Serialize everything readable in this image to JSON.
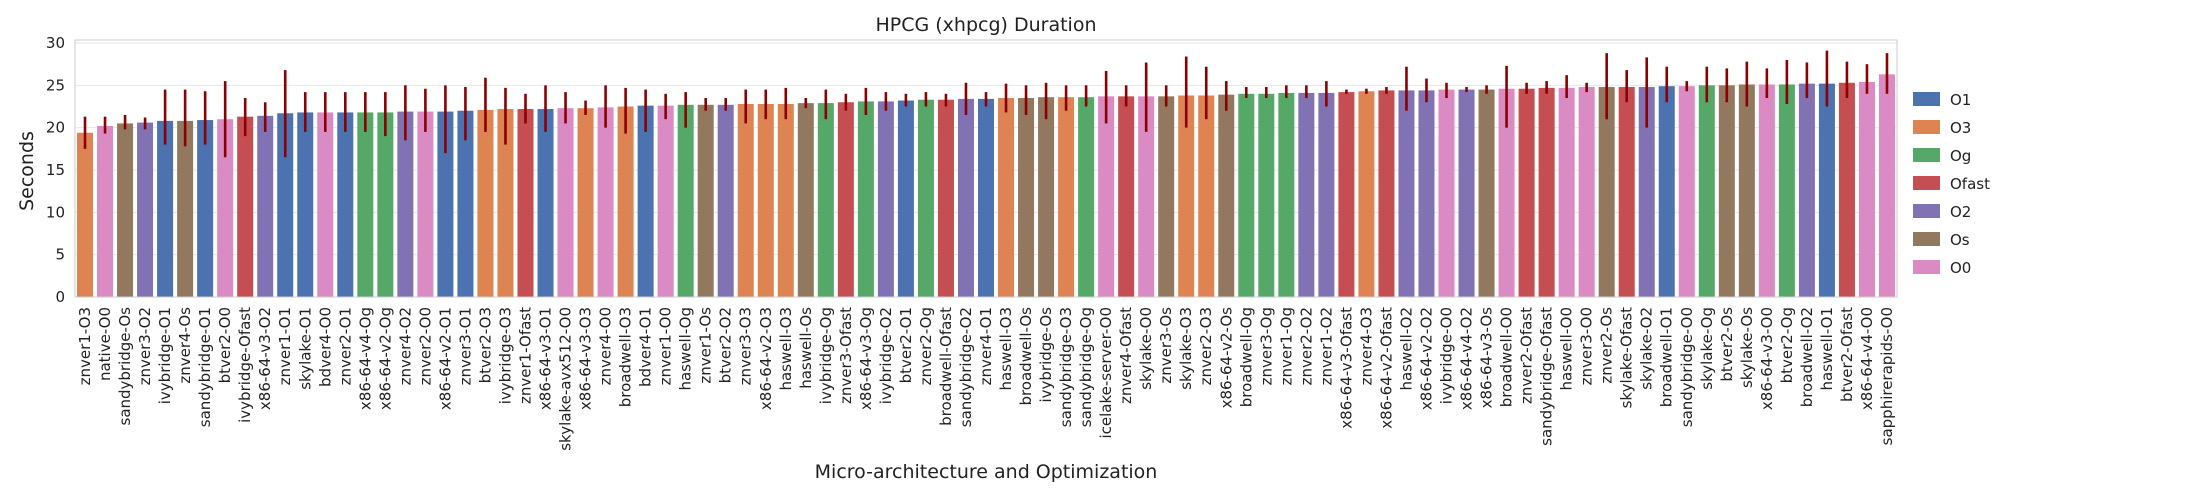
{
  "chart_data": {
    "type": "bar",
    "title": "HPCG (xhpcg) Duration",
    "xlabel": "Micro-architecture and Optimization",
    "ylabel": "Seconds",
    "ylim": [
      0,
      30
    ],
    "yticks": [
      0,
      5,
      10,
      15,
      20,
      25,
      30
    ],
    "grid": "horizontal",
    "legend_position": "right",
    "legend": [
      {
        "name": "O1",
        "color": "#4c72b0"
      },
      {
        "name": "O3",
        "color": "#dd8452"
      },
      {
        "name": "Og",
        "color": "#55a868"
      },
      {
        "name": "Ofast",
        "color": "#c44e52"
      },
      {
        "name": "O2",
        "color": "#8172b3"
      },
      {
        "name": "Os",
        "color": "#937860"
      },
      {
        "name": "O0",
        "color": "#da8bc3"
      }
    ],
    "error_bar_color": "#8b0000",
    "bars": [
      {
        "label": "znver1-O3",
        "opt": "O3",
        "value": 19.4,
        "err_low": 17.5,
        "err_high": 21.3
      },
      {
        "label": "native-O0",
        "opt": "O0",
        "value": 20.2,
        "err_low": 19.3,
        "err_high": 21.3
      },
      {
        "label": "sandybridge-Os",
        "opt": "Os",
        "value": 20.5,
        "err_low": 19.8,
        "err_high": 21.5
      },
      {
        "label": "znver3-O2",
        "opt": "O2",
        "value": 20.6,
        "err_low": 19.8,
        "err_high": 21.2
      },
      {
        "label": "ivybridge-O1",
        "opt": "O1",
        "value": 20.8,
        "err_low": 18.0,
        "err_high": 24.5
      },
      {
        "label": "znver4-Os",
        "opt": "Os",
        "value": 20.8,
        "err_low": 17.8,
        "err_high": 24.5
      },
      {
        "label": "sandybridge-O1",
        "opt": "O1",
        "value": 20.9,
        "err_low": 18.0,
        "err_high": 24.3
      },
      {
        "label": "btver2-O0",
        "opt": "O0",
        "value": 21.0,
        "err_low": 16.5,
        "err_high": 25.5
      },
      {
        "label": "ivybridge-Ofast",
        "opt": "Ofast",
        "value": 21.3,
        "err_low": 19.0,
        "err_high": 23.5
      },
      {
        "label": "x86-64-v3-O2",
        "opt": "O2",
        "value": 21.4,
        "err_low": 19.5,
        "err_high": 23.0
      },
      {
        "label": "znver1-O1",
        "opt": "O1",
        "value": 21.7,
        "err_low": 16.5,
        "err_high": 26.8
      },
      {
        "label": "skylake-O1",
        "opt": "O1",
        "value": 21.8,
        "err_low": 19.5,
        "err_high": 24.2
      },
      {
        "label": "bdver4-O0",
        "opt": "O0",
        "value": 21.8,
        "err_low": 19.5,
        "err_high": 24.2
      },
      {
        "label": "znver2-O1",
        "opt": "O1",
        "value": 21.8,
        "err_low": 19.5,
        "err_high": 24.2
      },
      {
        "label": "x86-64-v4-Og",
        "opt": "Og",
        "value": 21.8,
        "err_low": 19.5,
        "err_high": 24.2
      },
      {
        "label": "x86-64-v2-Og",
        "opt": "Og",
        "value": 21.8,
        "err_low": 19.0,
        "err_high": 24.2
      },
      {
        "label": "znver4-O2",
        "opt": "O2",
        "value": 21.9,
        "err_low": 18.5,
        "err_high": 25.0
      },
      {
        "label": "znver2-O0",
        "opt": "O0",
        "value": 21.9,
        "err_low": 19.5,
        "err_high": 24.6
      },
      {
        "label": "x86-64-v2-O1",
        "opt": "O1",
        "value": 21.9,
        "err_low": 17.0,
        "err_high": 25.0
      },
      {
        "label": "znver3-O1",
        "opt": "O1",
        "value": 22.0,
        "err_low": 18.5,
        "err_high": 24.8
      },
      {
        "label": "btver2-O3",
        "opt": "O3",
        "value": 22.1,
        "err_low": 19.5,
        "err_high": 25.9
      },
      {
        "label": "ivybridge-O3",
        "opt": "O3",
        "value": 22.2,
        "err_low": 18.0,
        "err_high": 24.7
      },
      {
        "label": "znver1-Ofast",
        "opt": "Ofast",
        "value": 22.2,
        "err_low": 20.5,
        "err_high": 24.0
      },
      {
        "label": "x86-64-v3-O1",
        "opt": "O1",
        "value": 22.2,
        "err_low": 19.5,
        "err_high": 25.0
      },
      {
        "label": "skylake-avx512-O0",
        "opt": "O0",
        "value": 22.3,
        "err_low": 20.5,
        "err_high": 24.2
      },
      {
        "label": "x86-64-v3-O3",
        "opt": "O3",
        "value": 22.3,
        "err_low": 21.5,
        "err_high": 23.2
      },
      {
        "label": "znver4-O0",
        "opt": "O0",
        "value": 22.4,
        "err_low": 20.0,
        "err_high": 25.0
      },
      {
        "label": "broadwell-O3",
        "opt": "O3",
        "value": 22.5,
        "err_low": 19.3,
        "err_high": 24.7
      },
      {
        "label": "bdver4-O1",
        "opt": "O1",
        "value": 22.6,
        "err_low": 19.5,
        "err_high": 24.5
      },
      {
        "label": "znver1-O0",
        "opt": "O0",
        "value": 22.6,
        "err_low": 21.0,
        "err_high": 24.0
      },
      {
        "label": "haswell-Og",
        "opt": "Og",
        "value": 22.7,
        "err_low": 20.0,
        "err_high": 24.2
      },
      {
        "label": "znver1-Os",
        "opt": "Os",
        "value": 22.7,
        "err_low": 22.0,
        "err_high": 23.5
      },
      {
        "label": "btver2-O2",
        "opt": "O2",
        "value": 22.7,
        "err_low": 22.0,
        "err_high": 23.5
      },
      {
        "label": "znver3-O3",
        "opt": "O3",
        "value": 22.8,
        "err_low": 20.5,
        "err_high": 24.5
      },
      {
        "label": "x86-64-v2-O3",
        "opt": "O3",
        "value": 22.8,
        "err_low": 21.0,
        "err_high": 24.5
      },
      {
        "label": "haswell-O3",
        "opt": "O3",
        "value": 22.8,
        "err_low": 21.0,
        "err_high": 24.7
      },
      {
        "label": "haswell-Os",
        "opt": "Os",
        "value": 22.9,
        "err_low": 22.3,
        "err_high": 23.5
      },
      {
        "label": "ivybridge-Og",
        "opt": "Og",
        "value": 22.9,
        "err_low": 21.0,
        "err_high": 24.5
      },
      {
        "label": "znver3-Ofast",
        "opt": "Ofast",
        "value": 23.0,
        "err_low": 22.0,
        "err_high": 24.0
      },
      {
        "label": "x86-64-v3-Og",
        "opt": "Og",
        "value": 23.1,
        "err_low": 21.5,
        "err_high": 24.7
      },
      {
        "label": "ivybridge-O2",
        "opt": "O2",
        "value": 23.1,
        "err_low": 22.0,
        "err_high": 24.2
      },
      {
        "label": "btver2-O1",
        "opt": "O1",
        "value": 23.2,
        "err_low": 22.5,
        "err_high": 24.0
      },
      {
        "label": "znver2-Og",
        "opt": "Og",
        "value": 23.3,
        "err_low": 22.5,
        "err_high": 24.2
      },
      {
        "label": "broadwell-Ofast",
        "opt": "Ofast",
        "value": 23.3,
        "err_low": 22.5,
        "err_high": 24.0
      },
      {
        "label": "sandybridge-O2",
        "opt": "O2",
        "value": 23.4,
        "err_low": 21.5,
        "err_high": 25.3
      },
      {
        "label": "znver4-O1",
        "opt": "O1",
        "value": 23.4,
        "err_low": 22.5,
        "err_high": 24.2
      },
      {
        "label": "haswell-O3",
        "opt": "O3",
        "value": 23.5,
        "err_low": 21.8,
        "err_high": 25.2
      },
      {
        "label": "broadwell-Os",
        "opt": "Os",
        "value": 23.5,
        "err_low": 21.5,
        "err_high": 25.0
      },
      {
        "label": "ivybridge-Os",
        "opt": "Os",
        "value": 23.6,
        "err_low": 21.0,
        "err_high": 25.3
      },
      {
        "label": "sandybridge-O3",
        "opt": "O3",
        "value": 23.6,
        "err_low": 22.0,
        "err_high": 25.0
      },
      {
        "label": "sandybridge-Og",
        "opt": "Og",
        "value": 23.6,
        "err_low": 22.5,
        "err_high": 25.0
      },
      {
        "label": "icelake-server-O0",
        "opt": "O0",
        "value": 23.7,
        "err_low": 20.5,
        "err_high": 26.7
      },
      {
        "label": "znver4-Ofast",
        "opt": "Ofast",
        "value": 23.7,
        "err_low": 22.5,
        "err_high": 25.0
      },
      {
        "label": "skylake-O0",
        "opt": "O0",
        "value": 23.7,
        "err_low": 19.5,
        "err_high": 27.7
      },
      {
        "label": "znver3-Os",
        "opt": "Os",
        "value": 23.7,
        "err_low": 22.5,
        "err_high": 25.0
      },
      {
        "label": "skylake-O3",
        "opt": "O3",
        "value": 23.8,
        "err_low": 20.0,
        "err_high": 28.4
      },
      {
        "label": "znver2-O3",
        "opt": "O3",
        "value": 23.8,
        "err_low": 21.0,
        "err_high": 27.2
      },
      {
        "label": "x86-64-v2-Os",
        "opt": "Os",
        "value": 23.9,
        "err_low": 22.0,
        "err_high": 25.5
      },
      {
        "label": "broadwell-Og",
        "opt": "Og",
        "value": 24.0,
        "err_low": 23.5,
        "err_high": 24.8
      },
      {
        "label": "znver3-Og",
        "opt": "Og",
        "value": 24.0,
        "err_low": 23.5,
        "err_high": 24.8
      },
      {
        "label": "znver1-Og",
        "opt": "Og",
        "value": 24.1,
        "err_low": 23.5,
        "err_high": 25.0
      },
      {
        "label": "znver2-O2",
        "opt": "O2",
        "value": 24.1,
        "err_low": 23.5,
        "err_high": 25.0
      },
      {
        "label": "znver1-O2",
        "opt": "O2",
        "value": 24.1,
        "err_low": 22.5,
        "err_high": 25.5
      },
      {
        "label": "x86-64-v3-Ofast",
        "opt": "Ofast",
        "value": 24.2,
        "err_low": 24.0,
        "err_high": 24.5
      },
      {
        "label": "znver4-O3",
        "opt": "O3",
        "value": 24.3,
        "err_low": 24.0,
        "err_high": 24.6
      },
      {
        "label": "x86-64-v2-Ofast",
        "opt": "Ofast",
        "value": 24.4,
        "err_low": 24.0,
        "err_high": 24.8
      },
      {
        "label": "haswell-O2",
        "opt": "O2",
        "value": 24.4,
        "err_low": 22.0,
        "err_high": 27.2
      },
      {
        "label": "x86-64-v2-O2",
        "opt": "O2",
        "value": 24.4,
        "err_low": 23.0,
        "err_high": 25.8
      },
      {
        "label": "ivybridge-O0",
        "opt": "O0",
        "value": 24.5,
        "err_low": 23.5,
        "err_high": 25.3
      },
      {
        "label": "x86-64-v4-O2",
        "opt": "O2",
        "value": 24.5,
        "err_low": 24.2,
        "err_high": 24.8
      },
      {
        "label": "x86-64-v3-Os",
        "opt": "Os",
        "value": 24.5,
        "err_low": 24.0,
        "err_high": 25.0
      },
      {
        "label": "broadwell-O0",
        "opt": "O0",
        "value": 24.6,
        "err_low": 20.0,
        "err_high": 27.3
      },
      {
        "label": "znver2-Ofast",
        "opt": "Ofast",
        "value": 24.6,
        "err_low": 24.0,
        "err_high": 25.3
      },
      {
        "label": "sandybridge-Ofast",
        "opt": "Ofast",
        "value": 24.7,
        "err_low": 24.0,
        "err_high": 25.5
      },
      {
        "label": "haswell-O0",
        "opt": "O0",
        "value": 24.7,
        "err_low": 23.5,
        "err_high": 26.2
      },
      {
        "label": "znver3-O0",
        "opt": "O0",
        "value": 24.8,
        "err_low": 24.2,
        "err_high": 25.3
      },
      {
        "label": "znver2-Os",
        "opt": "Os",
        "value": 24.8,
        "err_low": 21.0,
        "err_high": 28.8
      },
      {
        "label": "skylake-Ofast",
        "opt": "Ofast",
        "value": 24.8,
        "err_low": 23.0,
        "err_high": 26.8
      },
      {
        "label": "skylake-O2",
        "opt": "O2",
        "value": 24.8,
        "err_low": 20.0,
        "err_high": 28.3
      },
      {
        "label": "broadwell-O1",
        "opt": "O1",
        "value": 24.9,
        "err_low": 23.0,
        "err_high": 27.2
      },
      {
        "label": "sandybridge-O0",
        "opt": "O0",
        "value": 24.9,
        "err_low": 24.3,
        "err_high": 25.5
      },
      {
        "label": "skylake-Og",
        "opt": "Og",
        "value": 25.0,
        "err_low": 23.0,
        "err_high": 27.2
      },
      {
        "label": "btver2-Os",
        "opt": "Os",
        "value": 25.0,
        "err_low": 23.0,
        "err_high": 27.0
      },
      {
        "label": "skylake-Os",
        "opt": "Os",
        "value": 25.1,
        "err_low": 22.5,
        "err_high": 27.8
      },
      {
        "label": "x86-64-v3-O0",
        "opt": "O0",
        "value": 25.1,
        "err_low": 23.5,
        "err_high": 27.0
      },
      {
        "label": "btver2-Og",
        "opt": "Og",
        "value": 25.1,
        "err_low": 22.8,
        "err_high": 28.0
      },
      {
        "label": "broadwell-O2",
        "opt": "O2",
        "value": 25.2,
        "err_low": 23.5,
        "err_high": 27.7
      },
      {
        "label": "haswell-O1",
        "opt": "O1",
        "value": 25.2,
        "err_low": 22.5,
        "err_high": 29.1
      },
      {
        "label": "btver2-Ofast",
        "opt": "Ofast",
        "value": 25.3,
        "err_low": 23.5,
        "err_high": 27.8
      },
      {
        "label": "x86-64-v4-O0",
        "opt": "O0",
        "value": 25.4,
        "err_low": 24.0,
        "err_high": 27.5
      },
      {
        "label": "sapphirerapids-O0",
        "opt": "O0",
        "value": 26.3,
        "err_low": 24.0,
        "err_high": 28.8
      }
    ]
  }
}
